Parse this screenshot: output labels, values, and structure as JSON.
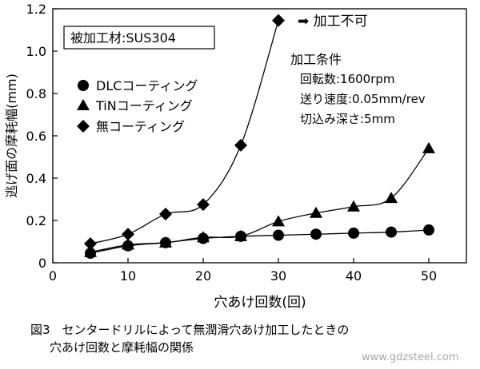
{
  "chart_data": {
    "type": "line",
    "xlabel": "穴あけ回数(回)",
    "ylabel": "逃げ面の摩耗幅(mm)",
    "xlim": [
      0,
      55
    ],
    "ylim": [
      0,
      1.2
    ],
    "x_ticks": [
      "0",
      "10",
      "20",
      "30",
      "40",
      "50"
    ],
    "y_ticks": [
      "0",
      "0.2",
      "0.4",
      "0.6",
      "0.8",
      "1.0",
      "1.2"
    ],
    "grid": false,
    "legend_position": "left",
    "series": [
      {
        "name": "DLCコーティング",
        "marker": "circle",
        "x": [
          5,
          10,
          15,
          20,
          25,
          30,
          35,
          40,
          45,
          50
        ],
        "values": [
          0.045,
          0.08,
          0.095,
          0.115,
          0.125,
          0.13,
          0.135,
          0.14,
          0.145,
          0.155
        ]
      },
      {
        "name": "TiNコーティング",
        "marker": "triangle",
        "x": [
          5,
          10,
          15,
          20,
          25,
          30,
          35,
          40,
          45,
          50
        ],
        "values": [
          0.05,
          0.085,
          0.095,
          0.12,
          0.125,
          0.195,
          0.235,
          0.265,
          0.305,
          0.54
        ]
      },
      {
        "name": "無コーティング",
        "marker": "diamond",
        "x": [
          5,
          10,
          15,
          20,
          25,
          30
        ],
        "values": [
          0.09,
          0.135,
          0.23,
          0.275,
          0.555,
          1.145
        ]
      }
    ],
    "material_box": "被加工材:SUS304",
    "annotation": "➡ 加工不可",
    "conditions": {
      "title": "加工条件",
      "lines": [
        "回転数:1600rpm",
        "送り速度:0.05mm/rev",
        "切込み深さ:5mm"
      ]
    }
  },
  "caption": {
    "line1": "図3　センタードリルによって無潤滑穴あけ加工したときの",
    "line2": "穴あけ回数と摩耗幅の関係"
  },
  "watermark": "www.gdzsteel.com"
}
